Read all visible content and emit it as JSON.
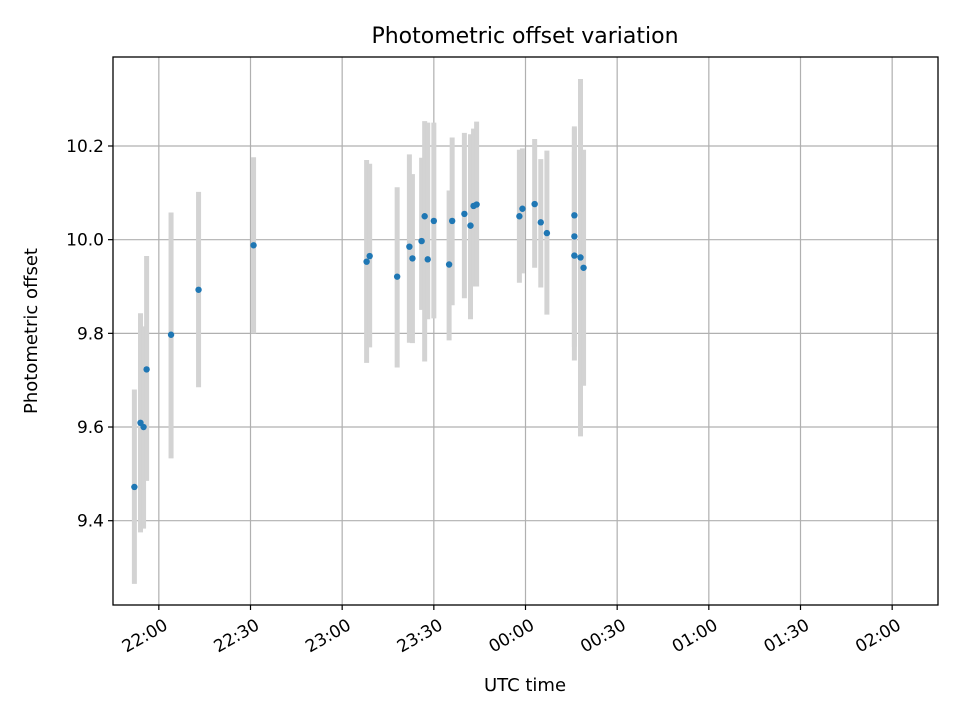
{
  "chart_data": {
    "type": "scatter",
    "title": "Photometric offset variation",
    "xlabel": "UTC time",
    "ylabel": "Photometric offset",
    "grid": true,
    "x_tick_labels": [
      "22:00",
      "22:30",
      "23:00",
      "23:30",
      "00:00",
      "00:30",
      "01:00",
      "01:30",
      "02:00"
    ],
    "y_tick_labels": [
      "9.4",
      "9.6",
      "9.8",
      "10.0",
      "10.2"
    ],
    "x_ticks": [
      "21:45",
      "22:00",
      "22:30",
      "23:00",
      "23:30",
      "00:00",
      "00:30",
      "01:00",
      "01:30",
      "02:00",
      "02:15"
    ],
    "ylim": [
      9.22,
      10.39
    ],
    "point_color": "#1f77b4",
    "errorbar_color": "#d3d3d3",
    "series": [
      {
        "x": [
          "21:52",
          "21:54",
          "21:55",
          "21:56",
          "22:04",
          "22:13",
          "22:31",
          "23:08",
          "23:09",
          "23:18",
          "23:22",
          "23:23",
          "23:26",
          "23:27",
          "23:28",
          "23:30",
          "23:35",
          "23:36",
          "23:40",
          "23:42",
          "23:43",
          "23:44",
          "23:58",
          "23:59",
          "00:03",
          "00:05",
          "00:07",
          "00:16",
          "00:16",
          "00:16",
          "00:18",
          "00:19"
        ],
        "y": [
          9.472,
          9.609,
          9.6,
          9.723,
          9.797,
          9.893,
          9.988,
          9.953,
          9.965,
          9.921,
          9.985,
          9.96,
          9.997,
          10.05,
          9.958,
          10.04,
          9.947,
          10.04,
          10.055,
          10.03,
          10.072,
          10.075,
          10.05,
          10.066,
          10.076,
          10.037,
          10.014,
          9.966,
          10.052,
          10.007,
          9.962,
          9.94
        ],
        "yerr_low": [
          9.265,
          9.375,
          9.383,
          9.485,
          9.533,
          9.685,
          9.8,
          9.737,
          9.77,
          9.727,
          9.78,
          9.779,
          9.85,
          9.74,
          9.83,
          9.832,
          9.785,
          9.86,
          9.875,
          9.83,
          9.9,
          9.9,
          9.908,
          9.928,
          9.94,
          9.898,
          9.84,
          9.742,
          9.865,
          9.771,
          9.58,
          9.688
        ],
        "yerr_high": [
          9.68,
          9.843,
          9.815,
          9.965,
          10.058,
          10.102,
          10.176,
          10.17,
          10.162,
          10.112,
          10.182,
          10.14,
          10.175,
          10.253,
          10.25,
          10.25,
          10.105,
          10.218,
          10.228,
          10.225,
          10.237,
          10.252,
          10.192,
          10.195,
          10.215,
          10.172,
          10.19,
          10.188,
          10.238,
          10.242,
          10.343,
          10.192
        ]
      }
    ]
  }
}
